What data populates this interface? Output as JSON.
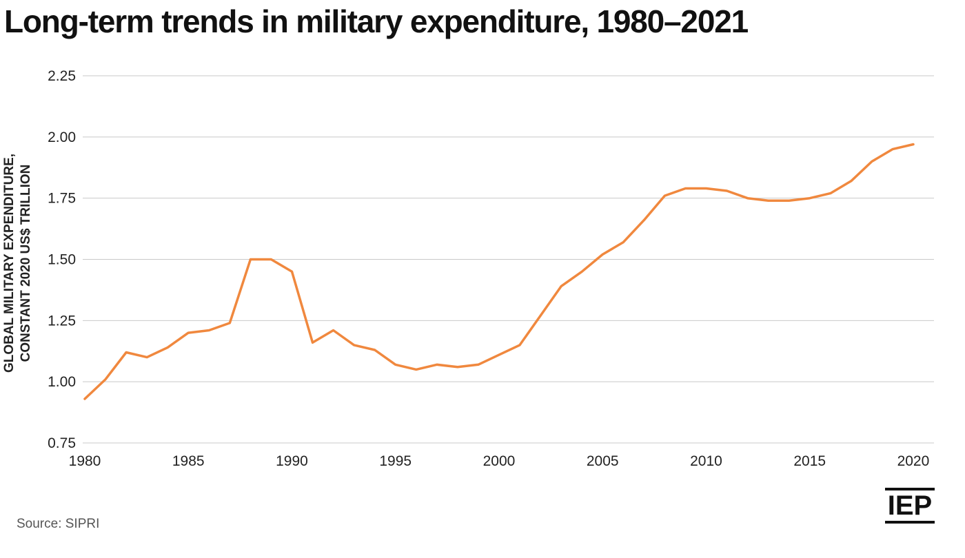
{
  "title": "Long-term trends in military expenditure, 1980–2021",
  "source": "Source: SIPRI",
  "logo_text": "IEP",
  "colors": {
    "line": "#f0883e",
    "grid": "#c8c8c8",
    "text": "#222222"
  },
  "chart_data": {
    "type": "line",
    "title": "Long-term trends in military expenditure, 1980–2021",
    "xlabel": "",
    "ylabel_lines": [
      "GLOBAL MILITARY EXPENDITURE,",
      "CONSTANT 2020 US$ TRILLION"
    ],
    "xlim": [
      1979.9,
      2021.0
    ],
    "ylim": [
      0.75,
      2.25
    ],
    "yticks": [
      0.75,
      1.0,
      1.25,
      1.5,
      1.75,
      2.0,
      2.25
    ],
    "ytick_labels": [
      "0.75",
      "1.00",
      "1.25",
      "1.50",
      "1.75",
      "2.00",
      "2.25"
    ],
    "xticks": [
      1980,
      1985,
      1990,
      1995,
      2000,
      2005,
      2010,
      2015,
      2020
    ],
    "xtick_labels": [
      "1980",
      "1985",
      "1990",
      "1995",
      "2000",
      "2005",
      "2010",
      "2015",
      "2020"
    ],
    "grid": true,
    "legend": "none",
    "series": [
      {
        "x": [
          1980,
          1981,
          1982,
          1983,
          1984,
          1985,
          1986,
          1987,
          1988,
          1989,
          1990,
          1991,
          1992,
          1993,
          1994,
          1995,
          1996,
          1997,
          1998,
          1999,
          2000,
          2001,
          2002,
          2003,
          2004,
          2005,
          2006,
          2007,
          2008,
          2009,
          2010,
          2011,
          2012,
          2013,
          2014,
          2015,
          2016,
          2017,
          2018,
          2019,
          2020
        ],
        "values": [
          0.93,
          1.01,
          1.12,
          1.1,
          1.14,
          1.2,
          1.21,
          1.24,
          1.5,
          1.5,
          1.45,
          1.16,
          1.21,
          1.15,
          1.13,
          1.07,
          1.05,
          1.07,
          1.06,
          1.07,
          1.11,
          1.15,
          1.27,
          1.39,
          1.45,
          1.52,
          1.57,
          1.66,
          1.76,
          1.79,
          1.79,
          1.78,
          1.75,
          1.74,
          1.74,
          1.75,
          1.77,
          1.82,
          1.9,
          1.95,
          1.97
        ]
      }
    ]
  }
}
